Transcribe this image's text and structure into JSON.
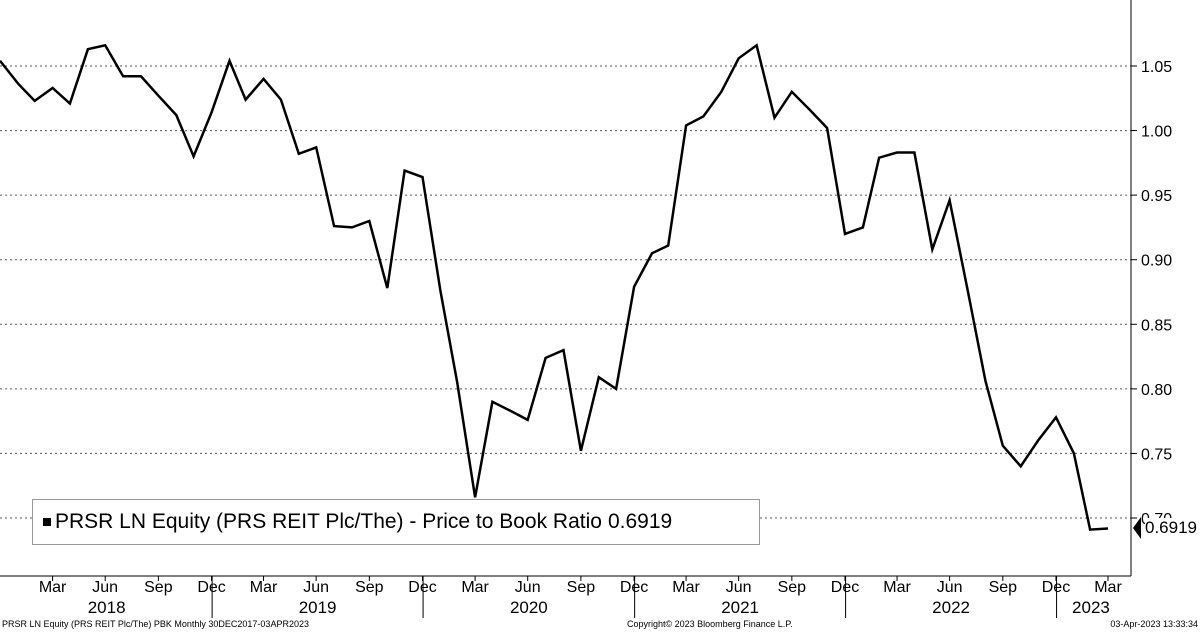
{
  "chart_data": {
    "type": "line",
    "series": [
      {
        "name": "PRSR LN Equity (PRS REIT Plc/The) - Price to Book Ratio",
        "last_value_label": "0.6919",
        "color": "#000000",
        "points": [
          [
            "2017-12-30",
            1.054
          ],
          [
            "2018-01-31",
            1.036
          ],
          [
            "2018-02-28",
            1.023
          ],
          [
            "2018-03-31",
            1.033
          ],
          [
            "2018-04-30",
            1.021
          ],
          [
            "2018-05-31",
            1.063
          ],
          [
            "2018-06-30",
            1.066
          ],
          [
            "2018-07-31",
            1.042
          ],
          [
            "2018-08-31",
            1.042
          ],
          [
            "2018-09-30",
            1.027
          ],
          [
            "2018-10-31",
            1.012
          ],
          [
            "2018-11-30",
            0.98
          ],
          [
            "2018-12-31",
            1.014
          ],
          [
            "2019-01-31",
            1.054
          ],
          [
            "2019-02-28",
            1.024
          ],
          [
            "2019-03-31",
            1.04
          ],
          [
            "2019-04-30",
            1.024
          ],
          [
            "2019-05-31",
            0.982
          ],
          [
            "2019-06-30",
            0.987
          ],
          [
            "2019-07-31",
            0.926
          ],
          [
            "2019-08-31",
            0.925
          ],
          [
            "2019-09-30",
            0.93
          ],
          [
            "2019-10-31",
            0.878
          ],
          [
            "2019-11-30",
            0.969
          ],
          [
            "2019-12-31",
            0.964
          ],
          [
            "2020-01-31",
            0.876
          ],
          [
            "2020-02-29",
            0.805
          ],
          [
            "2020-03-31",
            0.716
          ],
          [
            "2020-04-30",
            0.79
          ],
          [
            "2020-05-31",
            0.783
          ],
          [
            "2020-06-30",
            0.776
          ],
          [
            "2020-07-31",
            0.824
          ],
          [
            "2020-08-31",
            0.83
          ],
          [
            "2020-09-30",
            0.752
          ],
          [
            "2020-10-31",
            0.809
          ],
          [
            "2020-11-30",
            0.8
          ],
          [
            "2020-12-31",
            0.879
          ],
          [
            "2021-01-31",
            0.905
          ],
          [
            "2021-02-28",
            0.911
          ],
          [
            "2021-03-31",
            1.004
          ],
          [
            "2021-04-30",
            1.011
          ],
          [
            "2021-05-31",
            1.03
          ],
          [
            "2021-06-30",
            1.056
          ],
          [
            "2021-07-31",
            1.066
          ],
          [
            "2021-08-31",
            1.01
          ],
          [
            "2021-09-30",
            1.03
          ],
          [
            "2021-10-31",
            1.016
          ],
          [
            "2021-11-30",
            1.002
          ],
          [
            "2021-12-31",
            0.92
          ],
          [
            "2022-01-31",
            0.925
          ],
          [
            "2022-02-28",
            0.979
          ],
          [
            "2022-03-31",
            0.983
          ],
          [
            "2022-04-30",
            0.983
          ],
          [
            "2022-05-31",
            0.908
          ],
          [
            "2022-06-30",
            0.946
          ],
          [
            "2022-07-31",
            0.877
          ],
          [
            "2022-08-31",
            0.806
          ],
          [
            "2022-09-30",
            0.756
          ],
          [
            "2022-10-31",
            0.74
          ],
          [
            "2022-11-30",
            0.76
          ],
          [
            "2022-12-31",
            0.778
          ],
          [
            "2023-01-31",
            0.75
          ],
          [
            "2023-02-28",
            0.691
          ],
          [
            "2023-03-31",
            0.6919
          ]
        ]
      }
    ],
    "y_ticks": [
      "0.70",
      "0.75",
      "0.80",
      "0.85",
      "0.90",
      "0.95",
      "1.00",
      "1.05"
    ],
    "ylim": [
      0.655,
      1.1
    ],
    "y_axis_side": "right",
    "x_tick_labels": [
      {
        "label": "Mar",
        "date": "2018-03-31"
      },
      {
        "label": "Jun",
        "date": "2018-06-30"
      },
      {
        "label": "Sep",
        "date": "2018-09-30"
      },
      {
        "label": "Dec",
        "date": "2018-12-31"
      },
      {
        "label": "Mar",
        "date": "2019-03-31"
      },
      {
        "label": "Jun",
        "date": "2019-06-30"
      },
      {
        "label": "Sep",
        "date": "2019-09-30"
      },
      {
        "label": "Dec",
        "date": "2019-12-31"
      },
      {
        "label": "Mar",
        "date": "2020-03-31"
      },
      {
        "label": "Jun",
        "date": "2020-06-30"
      },
      {
        "label": "Sep",
        "date": "2020-09-30"
      },
      {
        "label": "Dec",
        "date": "2020-12-31"
      },
      {
        "label": "Mar",
        "date": "2021-03-31"
      },
      {
        "label": "Jun",
        "date": "2021-06-30"
      },
      {
        "label": "Sep",
        "date": "2021-09-30"
      },
      {
        "label": "Dec",
        "date": "2021-12-31"
      },
      {
        "label": "Mar",
        "date": "2022-03-31"
      },
      {
        "label": "Jun",
        "date": "2022-06-30"
      },
      {
        "label": "Sep",
        "date": "2022-09-30"
      },
      {
        "label": "Dec",
        "date": "2022-12-31"
      },
      {
        "label": "Mar",
        "date": "2023-03-31"
      }
    ],
    "year_labels": [
      "2018",
      "2019",
      "2020",
      "2021",
      "2022",
      "2023"
    ],
    "grid": true,
    "legend_position": "bottom-left"
  },
  "legend": {
    "label": "PRSR LN Equity (PRS REIT Plc/The) - Price to Book Ratio",
    "value": "0.6919"
  },
  "footer": {
    "left": "PRSR LN Equity (PRS REIT Plc/The) PBK  Monthly 30DEC2017-03APR2023",
    "center": "Copyright© 2023 Bloomberg Finance L.P.",
    "right": "03-Apr-2023 13:33:34"
  }
}
